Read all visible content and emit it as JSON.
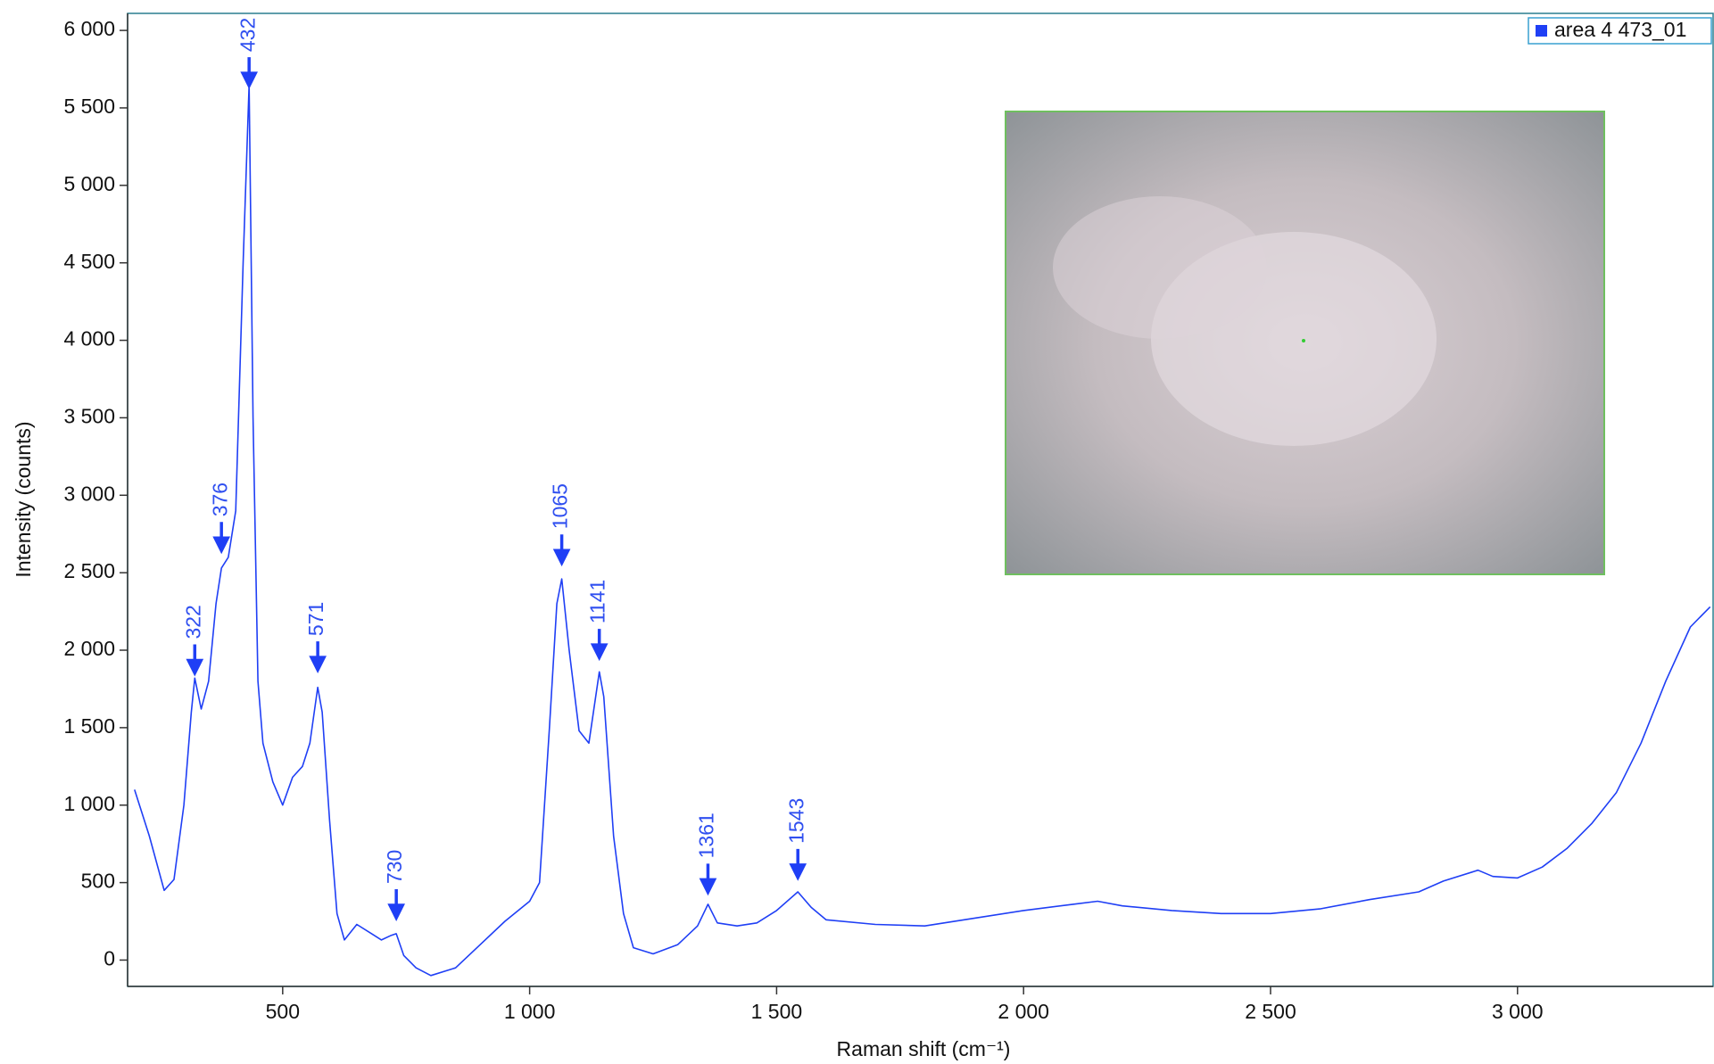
{
  "chart_data": {
    "type": "line",
    "xlabel": "Raman shift (cm⁻¹)",
    "ylabel": "Intensity (counts)",
    "xlim": [
      186,
      3396
    ],
    "ylim": [
      -170,
      6110
    ],
    "xticks": [
      500,
      {
        "value": 1000,
        "label": "1 000"
      },
      {
        "value": 1500,
        "label": "1 500"
      },
      {
        "value": 2000,
        "label": "2 000"
      },
      {
        "value": 2500,
        "label": "2 500"
      },
      {
        "value": 3000,
        "label": "3 000"
      }
    ],
    "yticks": [
      0,
      500,
      {
        "value": 1000,
        "label": "1 000"
      },
      {
        "value": 1500,
        "label": "1 500"
      },
      {
        "value": 2000,
        "label": "2 000"
      },
      {
        "value": 2500,
        "label": "2 500"
      },
      {
        "value": 3000,
        "label": "3 000"
      },
      {
        "value": 3500,
        "label": "3 500"
      },
      {
        "value": 4000,
        "label": "4 000"
      },
      {
        "value": 4500,
        "label": "4 500"
      },
      {
        "value": 5000,
        "label": "5 000"
      },
      {
        "value": 5500,
        "label": "5 500"
      },
      {
        "value": 6000,
        "label": "6 000"
      }
    ],
    "legend": "top-right",
    "x": [
      200,
      230,
      260,
      280,
      300,
      315,
      322,
      335,
      350,
      365,
      376,
      390,
      405,
      420,
      432,
      440,
      450,
      460,
      480,
      500,
      520,
      540,
      555,
      571,
      580,
      595,
      610,
      625,
      650,
      680,
      700,
      720,
      730,
      745,
      770,
      800,
      850,
      900,
      950,
      1000,
      1020,
      1040,
      1055,
      1065,
      1080,
      1100,
      1120,
      1141,
      1150,
      1170,
      1190,
      1210,
      1250,
      1300,
      1340,
      1361,
      1380,
      1420,
      1460,
      1500,
      1543,
      1570,
      1600,
      1700,
      1800,
      1900,
      2000,
      2100,
      2150,
      2200,
      2300,
      2400,
      2500,
      2600,
      2700,
      2800,
      2850,
      2920,
      2950,
      3000,
      3050,
      3100,
      3150,
      3200,
      3250,
      3300,
      3350,
      3390
    ],
    "series": [
      {
        "name": "area 4 473_01",
        "color": "#1f3ff5",
        "values": [
          1100,
          800,
          450,
          520,
          1000,
          1600,
          1820,
          1620,
          1800,
          2300,
          2530,
          2600,
          2900,
          4500,
          5650,
          3500,
          1800,
          1400,
          1150,
          1000,
          1180,
          1250,
          1400,
          1760,
          1600,
          900,
          300,
          130,
          230,
          170,
          130,
          160,
          170,
          30,
          -50,
          -100,
          -50,
          100,
          250,
          380,
          500,
          1500,
          2300,
          2460,
          2000,
          1480,
          1400,
          1860,
          1700,
          800,
          300,
          80,
          40,
          100,
          220,
          360,
          240,
          220,
          240,
          320,
          440,
          340,
          260,
          230,
          220,
          270,
          320,
          360,
          380,
          350,
          320,
          300,
          300,
          330,
          390,
          440,
          510,
          580,
          540,
          530,
          600,
          720,
          880,
          1080,
          1400,
          1800,
          2150,
          2280
        ]
      }
    ],
    "annotations": [
      {
        "label": "322",
        "x": 322,
        "y": 1830
      },
      {
        "label": "376",
        "x": 376,
        "y": 2620
      },
      {
        "label": "432",
        "x": 432,
        "y": 5620
      },
      {
        "label": "571",
        "x": 571,
        "y": 1850
      },
      {
        "label": "730",
        "x": 730,
        "y": 250
      },
      {
        "label": "1065",
        "x": 1065,
        "y": 2540
      },
      {
        "label": "1141",
        "x": 1141,
        "y": 1930
      },
      {
        "label": "1361",
        "x": 1361,
        "y": 415
      },
      {
        "label": "1543",
        "x": 1543,
        "y": 510
      }
    ]
  }
}
